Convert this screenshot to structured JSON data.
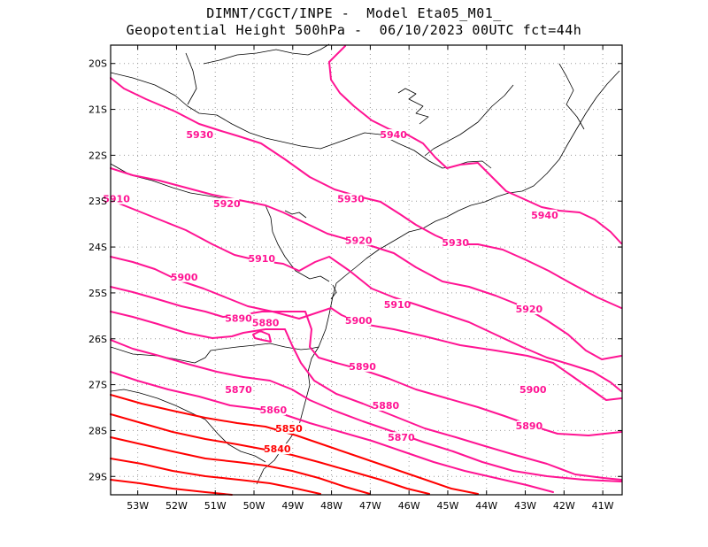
{
  "header": {
    "line1": "DIMNT/CGCT/INPE -  Model Eta05_M01_",
    "line2": "Geopotential Height 500hPa -  06/10/2023 00UTC fct=44h"
  },
  "map": {
    "lon_range": [
      -53.7,
      -40.5
    ],
    "lat_range": [
      -29.4,
      -19.6
    ],
    "grid": true,
    "lat_ticks": [
      {
        "value": -20,
        "label": "20S"
      },
      {
        "value": -21,
        "label": "21S"
      },
      {
        "value": -22,
        "label": "22S"
      },
      {
        "value": -23,
        "label": "23S"
      },
      {
        "value": -24,
        "label": "24S"
      },
      {
        "value": -25,
        "label": "25S"
      },
      {
        "value": -26,
        "label": "26S"
      },
      {
        "value": -27,
        "label": "27S"
      },
      {
        "value": -28,
        "label": "28S"
      },
      {
        "value": -29,
        "label": "29S"
      }
    ],
    "lon_ticks": [
      {
        "value": -53,
        "label": "53W"
      },
      {
        "value": -52,
        "label": "52W"
      },
      {
        "value": -51,
        "label": "51W"
      },
      {
        "value": -50,
        "label": "50W"
      },
      {
        "value": -49,
        "label": "49W"
      },
      {
        "value": -48,
        "label": "48W"
      },
      {
        "value": -47,
        "label": "47W"
      },
      {
        "value": -46,
        "label": "46W"
      },
      {
        "value": -45,
        "label": "45W"
      },
      {
        "value": -44,
        "label": "44W"
      },
      {
        "value": -43,
        "label": "43W"
      },
      {
        "value": -42,
        "label": "42W"
      },
      {
        "value": -41,
        "label": "41W"
      }
    ],
    "colors": {
      "magenta": "#ff1493",
      "red": "#ff0000",
      "border": "#000000"
    }
  },
  "contour_labels": [
    {
      "text": "5940",
      "lon": -42.5,
      "lat": -23.3
    },
    {
      "text": "5940",
      "lon": -46.4,
      "lat": -21.55
    },
    {
      "text": "5930",
      "lon": -51.4,
      "lat": -21.55
    },
    {
      "text": "5930",
      "lon": -47.5,
      "lat": -22.95
    },
    {
      "text": "5930",
      "lon": -44.8,
      "lat": -23.9
    },
    {
      "text": "5920",
      "lon": -50.7,
      "lat": -23.05
    },
    {
      "text": "5920",
      "lon": -47.3,
      "lat": -23.85
    },
    {
      "text": "5920",
      "lon": -42.9,
      "lat": -25.35
    },
    {
      "text": "5910",
      "lon": -53.55,
      "lat": -22.95
    },
    {
      "text": "5910",
      "lon": -49.8,
      "lat": -24.25
    },
    {
      "text": "5910",
      "lon": -46.3,
      "lat": -25.25
    },
    {
      "text": "5900",
      "lon": -51.8,
      "lat": -24.65
    },
    {
      "text": "5900",
      "lon": -47.3,
      "lat": -25.6
    },
    {
      "text": "5900",
      "lon": -42.8,
      "lat": -27.1
    },
    {
      "text": "5890",
      "lon": -50.4,
      "lat": -25.55
    },
    {
      "text": "5890",
      "lon": -47.2,
      "lat": -26.6
    },
    {
      "text": "5890",
      "lon": -42.9,
      "lat": -27.9
    },
    {
      "text": "5880",
      "lon": -49.7,
      "lat": -25.65
    },
    {
      "text": "5880",
      "lon": -46.6,
      "lat": -27.45
    },
    {
      "text": "5870",
      "lon": -50.4,
      "lat": -27.1
    },
    {
      "text": "5870",
      "lon": -46.2,
      "lat": -28.15
    },
    {
      "text": "5860",
      "lon": -49.5,
      "lat": -27.55
    },
    {
      "text": "5850",
      "lon": -49.1,
      "lat": -27.95
    },
    {
      "text": "5840",
      "lon": -49.4,
      "lat": -28.4
    }
  ]
}
